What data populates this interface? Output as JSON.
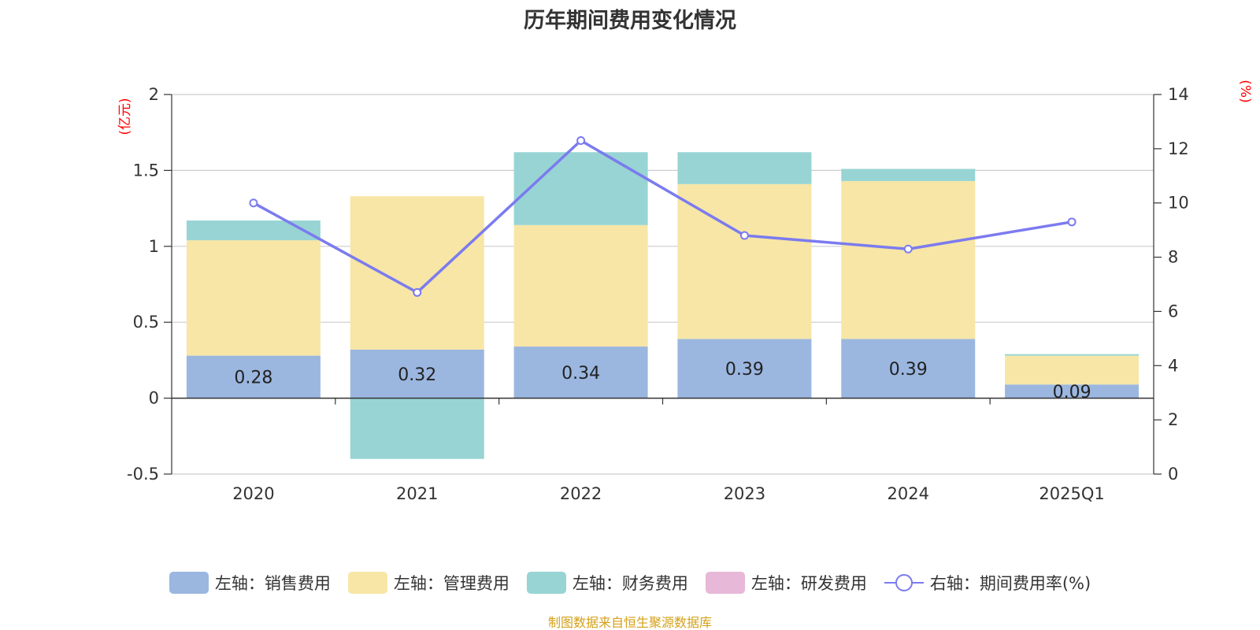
{
  "chart_data": {
    "type": "bar",
    "title": "历年期间费用变化情况",
    "categories": [
      "2020",
      "2021",
      "2022",
      "2023",
      "2024",
      "2025Q1"
    ],
    "left_axis": {
      "unit": "(亿元)",
      "ylim": [
        -0.5,
        2
      ],
      "ticks": [
        "2",
        "1.5",
        "1",
        "0.5",
        "0",
        "-0.5"
      ]
    },
    "right_axis": {
      "unit": "(%)",
      "ylim": [
        0,
        14
      ],
      "ticks": [
        "14",
        "12",
        "10",
        "8",
        "6",
        "4",
        "2",
        "0"
      ]
    },
    "series": [
      {
        "name": "左轴：销售费用",
        "color": "#9bb7e0",
        "values": [
          0.28,
          0.32,
          0.34,
          0.39,
          0.39,
          0.09
        ],
        "labels": [
          "0.28",
          "0.32",
          "0.34",
          "0.39",
          "0.39",
          "0.09"
        ]
      },
      {
        "name": "左轴：管理费用",
        "color": "#f7e6a6",
        "values": [
          0.76,
          1.01,
          0.8,
          1.02,
          1.04,
          0.19
        ]
      },
      {
        "name": "左轴：财务费用",
        "color": "#98d4d4",
        "values": [
          0.13,
          -0.4,
          0.48,
          0.21,
          0.08,
          0.01
        ]
      },
      {
        "name": "左轴：研发费用",
        "color": "#e8b8d8",
        "values": [
          0,
          0,
          0,
          0,
          0,
          0
        ]
      }
    ],
    "line": {
      "name": "右轴：期间费用率(%)",
      "color": "#7b7bef",
      "values": [
        10.0,
        6.7,
        12.3,
        8.8,
        8.3,
        9.3
      ]
    }
  },
  "footer": "制图数据来自恒生聚源数据库"
}
